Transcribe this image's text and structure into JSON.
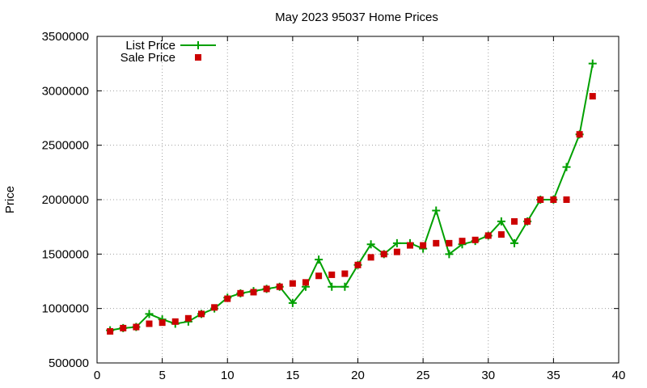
{
  "chart_data": {
    "type": "line",
    "title": "May 2023 95037 Home Prices",
    "xlabel": "",
    "ylabel": "Price",
    "xlim": [
      0,
      40
    ],
    "ylim": [
      500000,
      3500000
    ],
    "x_ticks": [
      0,
      5,
      10,
      15,
      20,
      25,
      30,
      35,
      40
    ],
    "y_ticks": [
      500000,
      1000000,
      1500000,
      2000000,
      2500000,
      3000000,
      3500000
    ],
    "grid": true,
    "legend_position": "top-left",
    "x": [
      1,
      2,
      3,
      4,
      5,
      6,
      7,
      8,
      9,
      10,
      11,
      12,
      13,
      14,
      15,
      16,
      17,
      18,
      19,
      20,
      21,
      22,
      23,
      24,
      25,
      26,
      27,
      28,
      29,
      30,
      31,
      32,
      33,
      34,
      35,
      36,
      37,
      38
    ],
    "series": [
      {
        "name": "List Price",
        "style": "lines with + markers",
        "color": "#00a000",
        "values": [
          800000,
          820000,
          830000,
          950000,
          900000,
          860000,
          880000,
          950000,
          1000000,
          1100000,
          1140000,
          1160000,
          1180000,
          1200000,
          1050000,
          1200000,
          1450000,
          1200000,
          1200000,
          1400000,
          1590000,
          1500000,
          1600000,
          1600000,
          1550000,
          1900000,
          1500000,
          1590000,
          1620000,
          1670000,
          1800000,
          1600000,
          1800000,
          2000000,
          2000000,
          2300000,
          2600000,
          3250000
        ]
      },
      {
        "name": "Sale Price",
        "style": "square points",
        "color": "#cc0000",
        "values": [
          790000,
          820000,
          830000,
          860000,
          870000,
          880000,
          910000,
          950000,
          1010000,
          1090000,
          1140000,
          1150000,
          1180000,
          1200000,
          1230000,
          1240000,
          1300000,
          1310000,
          1320000,
          1400000,
          1470000,
          1500000,
          1520000,
          1580000,
          1580000,
          1600000,
          1600000,
          1620000,
          1630000,
          1670000,
          1680000,
          1800000,
          1800000,
          2000000,
          2000000,
          2000000,
          2600000,
          2950000
        ]
      }
    ]
  }
}
